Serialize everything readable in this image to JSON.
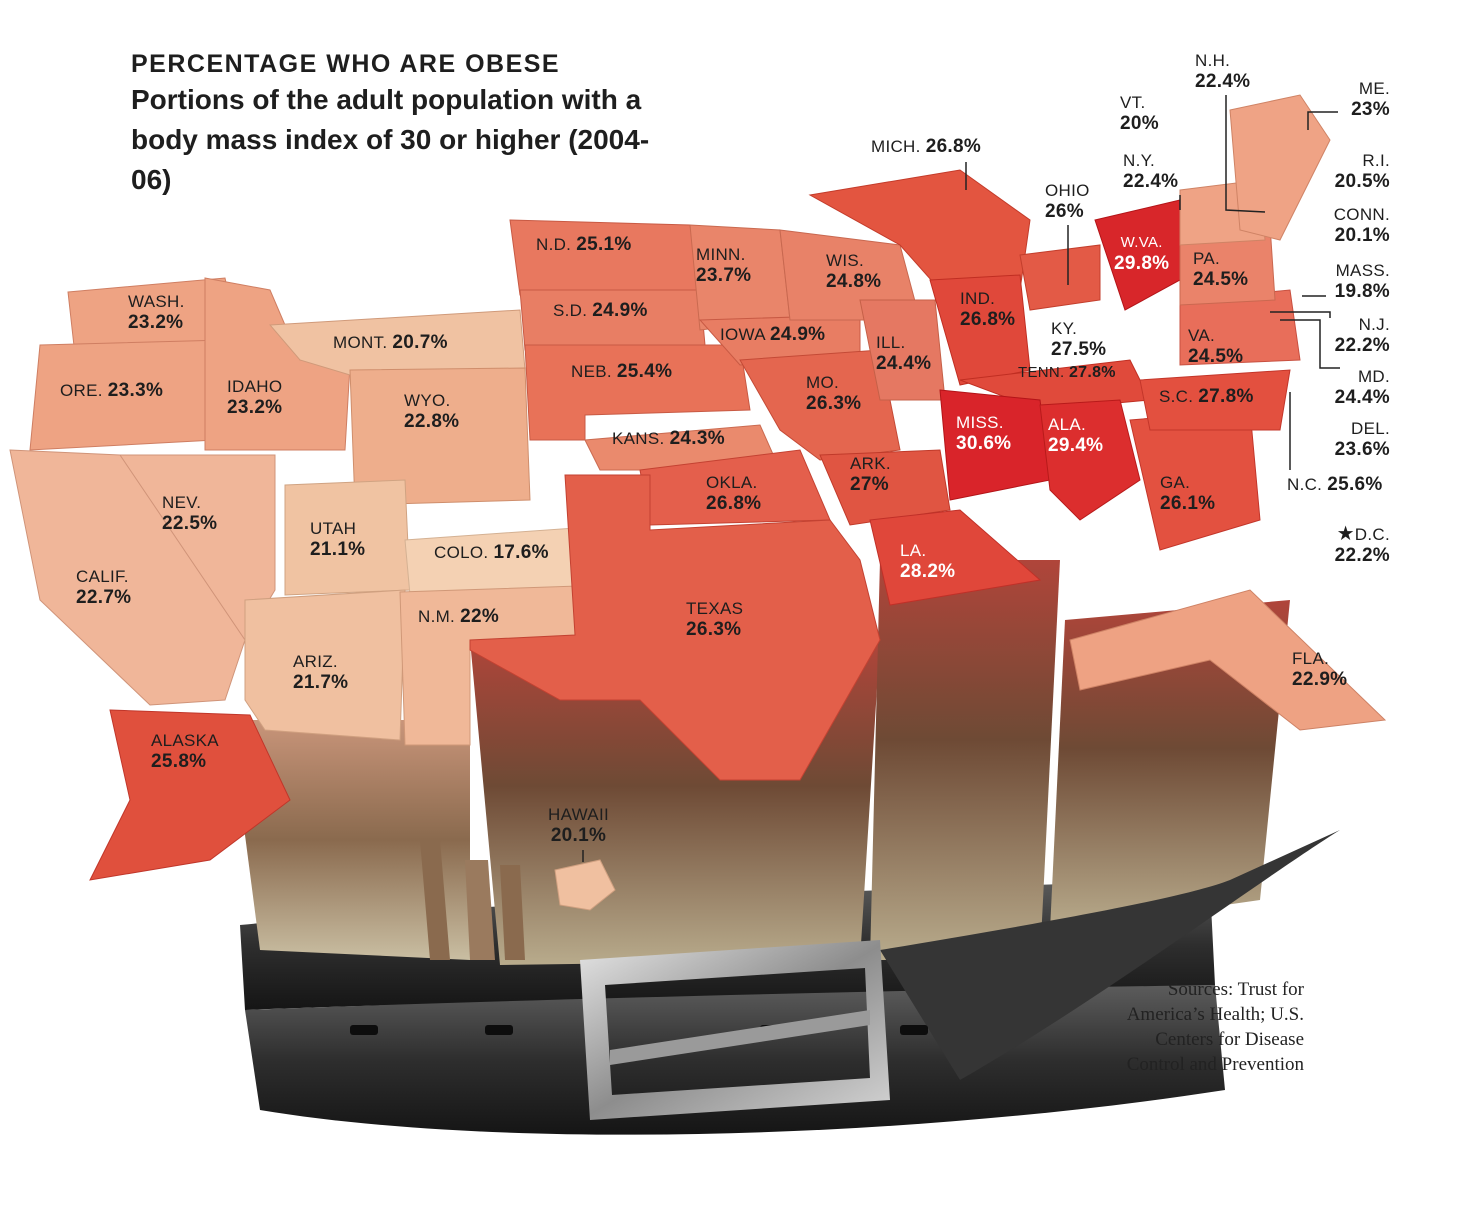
{
  "header": {
    "kicker": "PERCENTAGE WHO ARE OBESE",
    "subtitle": "Portions of the adult population with a body mass index of 30 or higher (2004-06)"
  },
  "legend_scale": {
    "low_color": "#f0c3a2",
    "mid_color": "#e8806b",
    "high_color": "#d9242a"
  },
  "states": [
    {
      "abbr": "WASH.",
      "value": "23.2%"
    },
    {
      "abbr": "ORE.",
      "value": "23.3%"
    },
    {
      "abbr": "IDAHO",
      "value": "23.2%"
    },
    {
      "abbr": "MONT.",
      "value": "20.7%"
    },
    {
      "abbr": "WYO.",
      "value": "22.8%"
    },
    {
      "abbr": "NEV.",
      "value": "22.5%"
    },
    {
      "abbr": "CALIF.",
      "value": "22.7%"
    },
    {
      "abbr": "UTAH",
      "value": "21.1%"
    },
    {
      "abbr": "COLO.",
      "value": "17.6%"
    },
    {
      "abbr": "ARIZ.",
      "value": "21.7%"
    },
    {
      "abbr": "N.M.",
      "value": "22%"
    },
    {
      "abbr": "N.D.",
      "value": "25.1%"
    },
    {
      "abbr": "S.D.",
      "value": "24.9%"
    },
    {
      "abbr": "NEB.",
      "value": "25.4%"
    },
    {
      "abbr": "KANS.",
      "value": "24.3%"
    },
    {
      "abbr": "OKLA.",
      "value": "26.8%"
    },
    {
      "abbr": "TEXAS",
      "value": "26.3%"
    },
    {
      "abbr": "MINN.",
      "value": "23.7%"
    },
    {
      "abbr": "IOWA",
      "value": "24.9%"
    },
    {
      "abbr": "MO.",
      "value": "26.3%"
    },
    {
      "abbr": "ARK.",
      "value": "27%"
    },
    {
      "abbr": "LA.",
      "value": "28.2%"
    },
    {
      "abbr": "WIS.",
      "value": "24.8%"
    },
    {
      "abbr": "ILL.",
      "value": "24.4%"
    },
    {
      "abbr": "MICH.",
      "value": "26.8%"
    },
    {
      "abbr": "IND.",
      "value": "26.8%"
    },
    {
      "abbr": "OHIO",
      "value": "26%"
    },
    {
      "abbr": "KY.",
      "value": "27.5%"
    },
    {
      "abbr": "TENN.",
      "value": "27.8%"
    },
    {
      "abbr": "MISS.",
      "value": "30.6%"
    },
    {
      "abbr": "ALA.",
      "value": "29.4%"
    },
    {
      "abbr": "GA.",
      "value": "26.1%"
    },
    {
      "abbr": "FLA.",
      "value": "22.9%"
    },
    {
      "abbr": "S.C.",
      "value": "27.8%"
    },
    {
      "abbr": "N.C.",
      "value": "25.6%"
    },
    {
      "abbr": "VA.",
      "value": "24.5%"
    },
    {
      "abbr": "W.VA.",
      "value": "29.8%"
    },
    {
      "abbr": "PA.",
      "value": "24.5%"
    },
    {
      "abbr": "N.Y.",
      "value": "22.4%"
    },
    {
      "abbr": "VT.",
      "value": "20%"
    },
    {
      "abbr": "N.H.",
      "value": "22.4%"
    },
    {
      "abbr": "ME.",
      "value": "23%"
    },
    {
      "abbr": "R.I.",
      "value": "20.5%"
    },
    {
      "abbr": "CONN.",
      "value": "20.1%"
    },
    {
      "abbr": "MASS.",
      "value": "19.8%"
    },
    {
      "abbr": "N.J.",
      "value": "22.2%"
    },
    {
      "abbr": "MD.",
      "value": "24.4%"
    },
    {
      "abbr": "DEL.",
      "value": "23.6%"
    },
    {
      "abbr": "D.C.",
      "value": "22.2%"
    },
    {
      "abbr": "ALASKA",
      "value": "25.8%"
    },
    {
      "abbr": "HAWAII",
      "value": "20.1%"
    }
  ],
  "sources": "Sources: Trust for America’s Health; U.S. Centers for Disease Control and Prevention"
}
